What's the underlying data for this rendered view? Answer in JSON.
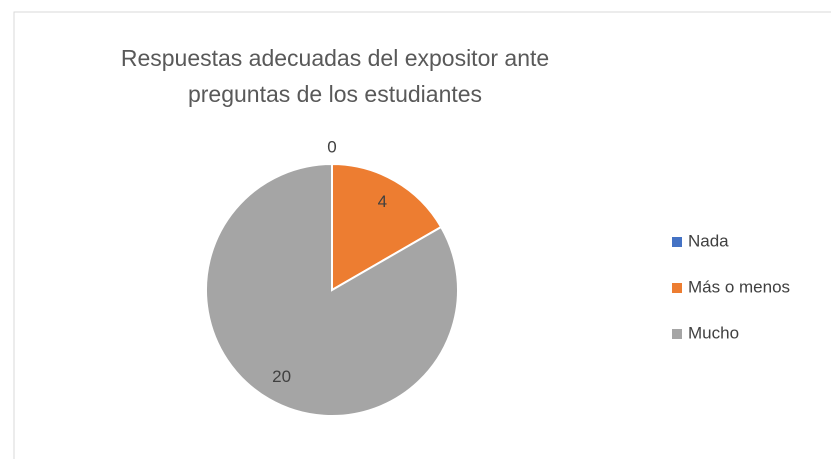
{
  "chart_data": {
    "type": "pie",
    "title": "Respuestas adecuadas del expositor ante preguntas de los estudiantes",
    "categories": [
      "Nada",
      "Más o menos",
      "Mucho"
    ],
    "values": [
      0,
      4,
      20
    ],
    "colors": [
      "#4472c4",
      "#ed7d31",
      "#a5a5a5"
    ],
    "legend": "right"
  }
}
